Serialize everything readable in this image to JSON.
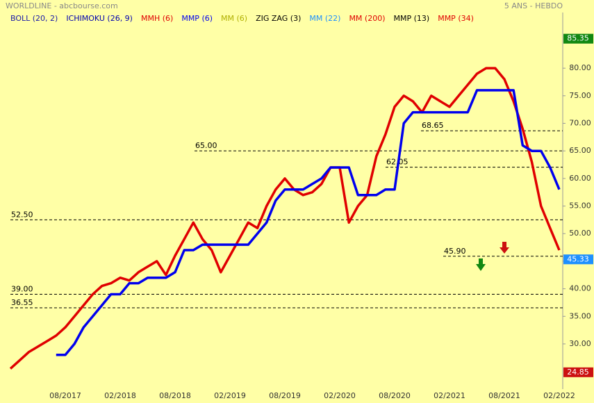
{
  "chart_data": {
    "type": "line",
    "title": "WORLDLINE - abcbourse.com",
    "subtitle": "5 ANS - HEBDO",
    "categories": [
      null,
      null,
      null,
      null,
      null,
      null,
      "08/2017",
      null,
      null,
      null,
      null,
      null,
      "02/2018",
      null,
      null,
      null,
      null,
      null,
      "08/2018",
      null,
      null,
      null,
      null,
      null,
      "02/2019",
      null,
      null,
      null,
      null,
      null,
      "08/2019",
      null,
      null,
      null,
      null,
      null,
      "02/2020",
      null,
      null,
      null,
      null,
      null,
      "08/2020",
      null,
      null,
      null,
      null,
      null,
      "02/2021",
      null,
      null,
      null,
      null,
      null,
      "08/2021",
      null,
      null,
      null,
      null,
      null,
      "02/2022"
    ],
    "series": [
      {
        "name": "BOLL (20, 2)",
        "color": "#1a1aa8"
      },
      {
        "name": "ICHIMOKU (26, 9)",
        "color": "#0000b0"
      },
      {
        "name": "MMH (6)",
        "color": "#e00000",
        "values": [
          25.5,
          27,
          28.5,
          29.5,
          30.5,
          31.5,
          33,
          35,
          37,
          39,
          40.5,
          41,
          42,
          41.5,
          43,
          44,
          45,
          42.5,
          46,
          49,
          52,
          49,
          47,
          43,
          46,
          49,
          52,
          51,
          55,
          58,
          60,
          58,
          57,
          57.5,
          59,
          62,
          62,
          52,
          55,
          57,
          64,
          68,
          73,
          75,
          74,
          72,
          75,
          74,
          73,
          75,
          77,
          79,
          80,
          80,
          78,
          74,
          69,
          63,
          55,
          51,
          47
        ]
      },
      {
        "name": "MMP (6)",
        "color": "#0000ee",
        "values": [
          null,
          null,
          null,
          null,
          null,
          28,
          28,
          30,
          33,
          35,
          37,
          39,
          39,
          41,
          41,
          42,
          42,
          42,
          43,
          47,
          47,
          48,
          48,
          48,
          48,
          48,
          48,
          50,
          52,
          56,
          58,
          58,
          58,
          59,
          60,
          62,
          62,
          62,
          57,
          57,
          57,
          58,
          58,
          70,
          72,
          72,
          72,
          72,
          72,
          72,
          72,
          76,
          76,
          76,
          76,
          76,
          66,
          65,
          65,
          62,
          58
        ]
      },
      {
        "name": "MM (6)",
        "color": "#b0b000"
      },
      {
        "name": "ZIG ZAG (3)",
        "color": "#000000"
      },
      {
        "name": "MM (22)",
        "color": "#1e90ff"
      },
      {
        "name": "MM (200)",
        "color": "#e00000"
      },
      {
        "name": "MMP (13)",
        "color": "#000000"
      },
      {
        "name": "MMP (34)",
        "color": "#e00000"
      }
    ],
    "ylim": [
      21.8,
      90.1
    ],
    "yticks": [
      {
        "value": 30,
        "label": "30.00"
      },
      {
        "value": 35,
        "label": "35.00"
      },
      {
        "value": 40,
        "label": "40.00"
      },
      {
        "value": 45,
        "label": "45.00"
      },
      {
        "value": 50,
        "label": "50.00"
      },
      {
        "value": 55,
        "label": "55.00"
      },
      {
        "value": 60,
        "label": "60.00"
      },
      {
        "value": 65,
        "label": "65.00"
      },
      {
        "value": 70,
        "label": "70.00"
      },
      {
        "value": 75,
        "label": "75.00"
      },
      {
        "value": 80,
        "label": "80.00"
      }
    ],
    "levels": [
      {
        "value": 65,
        "label": "65.00"
      },
      {
        "value": 52.5,
        "label": "52.50"
      },
      {
        "value": 39,
        "label": "39.00"
      },
      {
        "value": 36.55,
        "label": "36.55"
      },
      {
        "value": 62.05,
        "label": "62.05"
      },
      {
        "value": 68.65,
        "label": "68.65"
      },
      {
        "value": 45.9,
        "label": "45.90"
      }
    ],
    "price_tags": [
      {
        "value": 85.35,
        "label": "85.35",
        "color": "#118811"
      },
      {
        "value": 45.33,
        "label": "45.33",
        "color": "#1e90ff"
      },
      {
        "value": 24.85,
        "label": "24.85",
        "color": "#cc1111"
      }
    ]
  }
}
